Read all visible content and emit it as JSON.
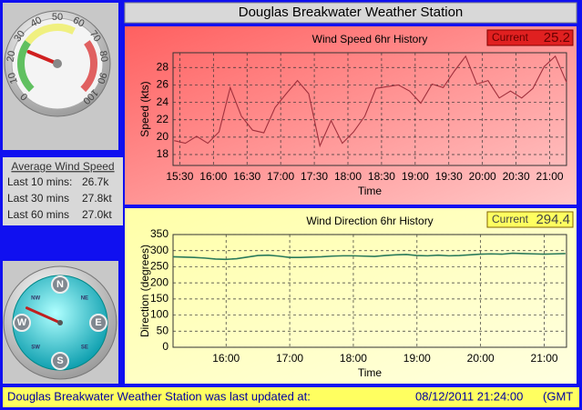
{
  "header": {
    "title": "Douglas Breakwater Weather Station"
  },
  "gauge": {
    "labels": [
      0,
      10,
      20,
      30,
      40,
      50,
      60,
      70,
      80,
      90,
      100
    ],
    "value": 25
  },
  "average": {
    "title": "Average Wind Speed",
    "rows": [
      [
        "Last 10 mins:",
        "26.7k"
      ],
      [
        "Last 30 mins",
        "27.8kt"
      ],
      [
        "Last 60 mins",
        "27.0kt"
      ]
    ]
  },
  "compass": {
    "labels": [
      "N",
      "E",
      "S",
      "W",
      "NE",
      "SE",
      "SW",
      "NW"
    ],
    "value": 294
  },
  "chart_data": [
    {
      "type": "line",
      "title": "Wind Speed 6hr History",
      "current_label": "Current",
      "current": 25.2,
      "xlabel": "Time",
      "ylabel": "Speed (kts)",
      "background": "#f03a3a",
      "grid": true,
      "x": [
        "15:25",
        "15:35",
        "15:45",
        "15:55",
        "16:05",
        "16:15",
        "16:25",
        "16:35",
        "16:45",
        "16:55",
        "17:05",
        "17:15",
        "17:25",
        "17:35",
        "17:45",
        "17:55",
        "18:05",
        "18:15",
        "18:25",
        "18:35",
        "18:45",
        "18:55",
        "19:05",
        "19:15",
        "19:25",
        "19:35",
        "19:45",
        "19:55",
        "20:05",
        "20:15",
        "20:25",
        "20:35",
        "20:45",
        "20:55",
        "21:05",
        "21:15"
      ],
      "series": [
        {
          "color": "#a0303c",
          "values": [
            19.6,
            19.3,
            20.1,
            19.3,
            20.6,
            25.7,
            22.4,
            20.8,
            20.5,
            23.4,
            25.0,
            26.5,
            25.0,
            19.0,
            21.9,
            19.3,
            20.6,
            22.4,
            25.6,
            25.8,
            26.0,
            25.3,
            23.9,
            26.1,
            25.7,
            27.6,
            29.3,
            26.1,
            26.5,
            24.5,
            25.3,
            24.5,
            25.6,
            28.1,
            29.3,
            26.3
          ]
        }
      ],
      "xlim": [
        "15:24",
        "21:15"
      ],
      "xticks": [
        "15:30",
        "16:00",
        "16:30",
        "17:00",
        "17:30",
        "18:00",
        "18:30",
        "19:00",
        "19:30",
        "20:00",
        "20:30",
        "21:00"
      ],
      "ylim": [
        16.75,
        29.7
      ],
      "yticks": [
        18,
        20,
        22,
        24,
        26,
        28
      ]
    },
    {
      "type": "line",
      "title": "Wind Direction 6hr History",
      "current_label": "Current",
      "current": 294.4,
      "xlabel": "Time",
      "ylabel": "Direction (degrees)",
      "background": "#ffff99",
      "grid": true,
      "x": [
        "15:10",
        "15:20",
        "15:30",
        "15:40",
        "15:50",
        "16:00",
        "16:10",
        "16:20",
        "16:30",
        "16:40",
        "16:50",
        "17:00",
        "17:10",
        "17:20",
        "17:30",
        "17:40",
        "17:50",
        "18:00",
        "18:10",
        "18:20",
        "18:30",
        "18:40",
        "18:50",
        "19:00",
        "19:10",
        "19:20",
        "19:30",
        "19:40",
        "19:50",
        "20:00",
        "20:10",
        "20:20",
        "20:30",
        "20:40",
        "20:50",
        "21:00",
        "21:10",
        "21:20"
      ],
      "series": [
        {
          "color": "#2a7a5a",
          "values": [
            281,
            280,
            279,
            277,
            274,
            273,
            275,
            280,
            285,
            286,
            283,
            279,
            279,
            280,
            281,
            283,
            284,
            284,
            283,
            282,
            285,
            287,
            288,
            285,
            284,
            286,
            284,
            285,
            287,
            289,
            290,
            289,
            292,
            291,
            290,
            289,
            290,
            291
          ]
        }
      ],
      "xlim": [
        "15:10",
        "21:21"
      ],
      "xticks": [
        "16:00",
        "17:00",
        "18:00",
        "19:00",
        "20:00",
        "21:00"
      ],
      "ylim": [
        0,
        350
      ],
      "yticks": [
        0,
        50,
        100,
        150,
        200,
        250,
        300,
        350
      ]
    }
  ],
  "footer": {
    "text": "Douglas Breakwater Weather Station was last updated at:",
    "timestamp": "08/12/2011 21:24:00",
    "zone": "(GMT"
  }
}
